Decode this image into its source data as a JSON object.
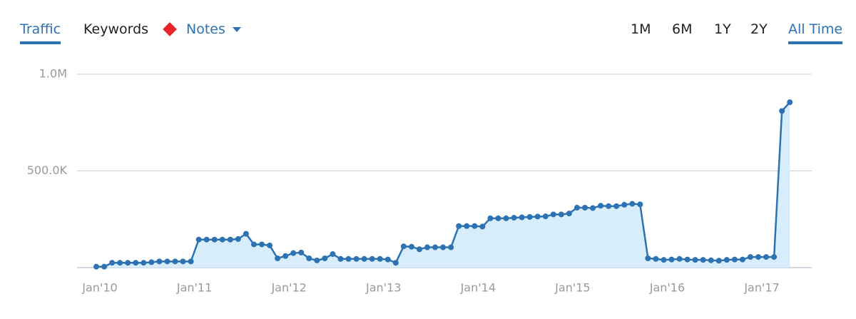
{
  "tabs": [
    "Traffic",
    "Keywords"
  ],
  "notes": "Notes",
  "periods": [
    "1M",
    "6M",
    "1Y",
    "2Y",
    "All Time"
  ],
  "chart_data": {
    "type": "line",
    "color": "#2d72b2",
    "fill": "#d8edfb",
    "categories": [
      "Jan'10",
      null,
      null,
      null,
      null,
      null,
      null,
      null,
      null,
      null,
      null,
      null,
      "Jan'11",
      null,
      null,
      null,
      null,
      null,
      null,
      null,
      null,
      null,
      null,
      null,
      "Jan'12",
      null,
      null,
      null,
      null,
      null,
      null,
      null,
      null,
      null,
      null,
      null,
      "Jan'13",
      null,
      null,
      null,
      null,
      null,
      null,
      null,
      null,
      null,
      null,
      null,
      "Jan'14",
      null,
      null,
      null,
      null,
      null,
      null,
      null,
      null,
      null,
      null,
      null,
      "Jan'15",
      null,
      null,
      null,
      null,
      null,
      null,
      null,
      null,
      null,
      null,
      null,
      "Jan'16",
      null,
      null,
      null,
      null,
      null,
      null,
      null,
      null,
      null,
      null,
      null,
      "Jan'17",
      null,
      null,
      null,
      null
    ],
    "values": [
      5000,
      5000,
      25000,
      25000,
      25000,
      25000,
      25000,
      28000,
      32000,
      32000,
      32000,
      32000,
      32000,
      145000,
      145000,
      145000,
      145000,
      145000,
      148000,
      175000,
      120000,
      120000,
      115000,
      48000,
      60000,
      75000,
      78000,
      48000,
      37000,
      48000,
      70000,
      45000,
      45000,
      45000,
      45000,
      45000,
      45000,
      42000,
      25000,
      110000,
      108000,
      95000,
      105000,
      105000,
      105000,
      105000,
      215000,
      215000,
      215000,
      212000,
      255000,
      255000,
      255000,
      258000,
      260000,
      262000,
      264000,
      265000,
      275000,
      275000,
      280000,
      310000,
      310000,
      308000,
      320000,
      318000,
      318000,
      325000,
      330000,
      327000,
      48000,
      45000,
      40000,
      42000,
      45000,
      42000,
      40000,
      40000,
      38000,
      36000,
      40000,
      42000,
      42000,
      55000,
      55000,
      55000,
      55000,
      810000,
      855000
    ],
    "ylim": [
      0,
      1000000
    ],
    "yticks": [
      {
        "value": 500000,
        "label": "500.0K"
      },
      {
        "value": 1000000,
        "label": "1.0M"
      }
    ],
    "grid": true
  }
}
